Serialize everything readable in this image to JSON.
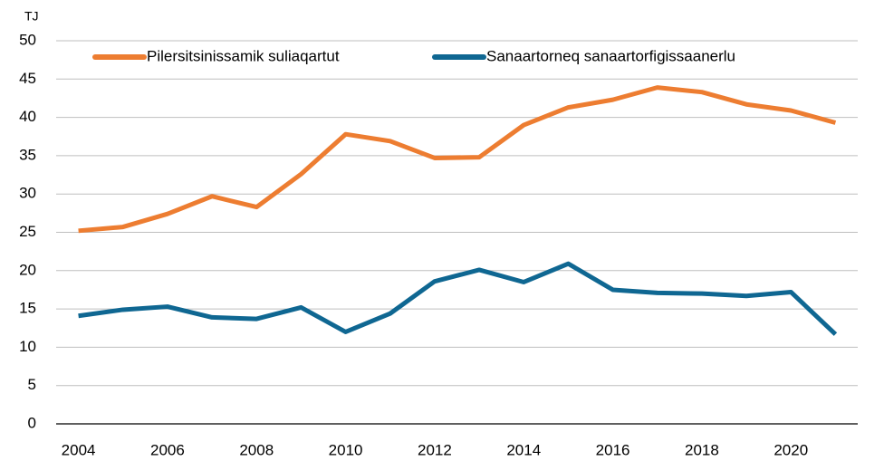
{
  "chart_data": {
    "type": "line",
    "y_label": "TJ",
    "x": [
      2004,
      2005,
      2006,
      2007,
      2008,
      2009,
      2010,
      2011,
      2012,
      2013,
      2014,
      2015,
      2016,
      2017,
      2018,
      2019,
      2020,
      2021
    ],
    "series": [
      {
        "name": "Pilersitsinissamik suliaqartut",
        "color": "#ed7d31",
        "values": [
          25.2,
          25.7,
          27.4,
          29.7,
          28.3,
          32.6,
          37.8,
          36.9,
          34.7,
          34.8,
          39.0,
          41.3,
          42.3,
          43.9,
          43.3,
          41.7,
          40.9,
          39.3
        ]
      },
      {
        "name": "Sanaartorneq sanaartorfigissaanerlu",
        "color": "#0f6792",
        "values": [
          14.1,
          14.9,
          15.3,
          13.9,
          13.7,
          15.2,
          12.0,
          14.4,
          18.6,
          20.1,
          18.5,
          20.9,
          17.5,
          17.1,
          17.0,
          16.7,
          17.2,
          11.7
        ]
      }
    ],
    "xlim": [
      2003.5,
      2021.5
    ],
    "xticks": [
      2004,
      2006,
      2008,
      2010,
      2012,
      2014,
      2016,
      2018,
      2020
    ],
    "ylim": [
      0,
      50
    ],
    "yticks": [
      0,
      5,
      10,
      15,
      20,
      25,
      30,
      35,
      40,
      45,
      50
    ],
    "grid": true,
    "legend": "top"
  }
}
